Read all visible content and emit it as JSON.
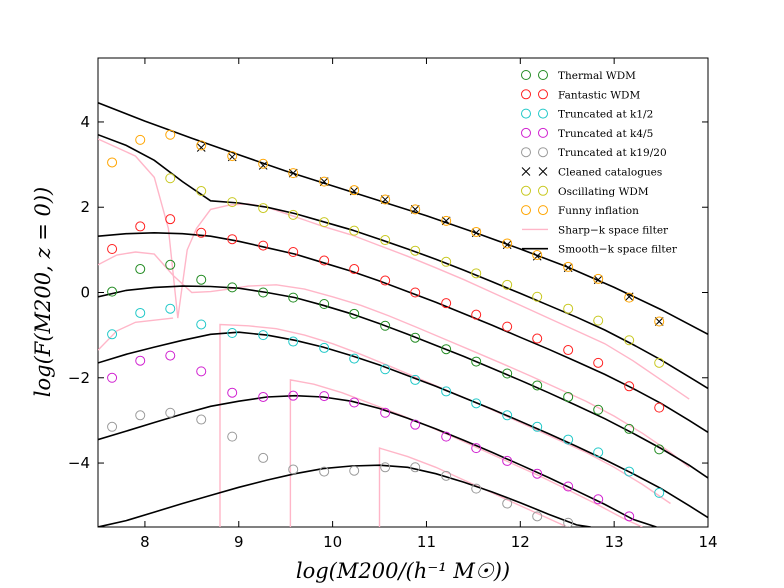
{
  "chart_data": {
    "type": "scatter",
    "title": "",
    "xlabel": "log(M200/(h⁻¹ M☉))",
    "ylabel": "log(F(M200, z = 0))",
    "xlim": [
      7.5,
      14.0
    ],
    "ylim": [
      -5.5,
      5.5
    ],
    "xticks": [
      8,
      9,
      10,
      11,
      12,
      13,
      14
    ],
    "yticks": [
      -4,
      -2,
      0,
      2,
      4
    ],
    "xtick_labels": [
      "8",
      "9",
      "10",
      "11",
      "12",
      "13",
      "14"
    ],
    "ytick_labels": [
      "−4",
      "−2",
      "0",
      "2",
      "4"
    ],
    "legend_position": "top-right",
    "series": [
      {
        "name": "Thermal WDM",
        "marker": "circle",
        "color": "#228B22",
        "x": [
          7.65,
          7.95,
          8.27,
          8.6,
          8.93,
          9.26,
          9.58,
          9.91,
          10.23,
          10.56,
          10.88,
          11.21,
          11.53,
          11.86,
          12.18,
          12.51,
          12.83,
          13.16,
          13.48
        ],
        "y": [
          0.02,
          0.55,
          0.65,
          0.3,
          0.12,
          0.0,
          -0.12,
          -0.27,
          -0.5,
          -0.78,
          -1.06,
          -1.33,
          -1.62,
          -1.9,
          -2.18,
          -2.45,
          -2.75,
          -3.2,
          -3.68
        ]
      },
      {
        "name": "Fantastic WDM",
        "marker": "circle",
        "color": "#FF2020",
        "x": [
          7.65,
          7.95,
          8.27,
          8.6,
          8.93,
          9.26,
          9.58,
          9.91,
          10.23,
          10.56,
          10.88,
          11.21,
          11.53,
          11.86,
          12.18,
          12.51,
          12.83,
          13.16,
          13.48
        ],
        "y": [
          1.02,
          1.55,
          1.72,
          1.4,
          1.25,
          1.1,
          0.95,
          0.75,
          0.55,
          0.28,
          0.0,
          -0.25,
          -0.52,
          -0.8,
          -1.08,
          -1.35,
          -1.65,
          -2.2,
          -2.7
        ]
      },
      {
        "name": "Truncated at k1/2",
        "marker": "circle",
        "color": "#20C8C8",
        "x": [
          7.65,
          7.95,
          8.27,
          8.6,
          8.93,
          9.26,
          9.58,
          9.91,
          10.23,
          10.56,
          10.88,
          11.21,
          11.53,
          11.86,
          12.18,
          12.51,
          12.83,
          13.16,
          13.48
        ],
        "y": [
          -0.98,
          -0.48,
          -0.38,
          -0.75,
          -0.95,
          -1.0,
          -1.15,
          -1.3,
          -1.55,
          -1.8,
          -2.05,
          -2.32,
          -2.6,
          -2.88,
          -3.15,
          -3.45,
          -3.75,
          -4.2,
          -4.7
        ]
      },
      {
        "name": "Truncated at k4/5",
        "marker": "circle",
        "color": "#D020D0",
        "x": [
          7.65,
          7.95,
          8.27,
          8.6,
          8.93,
          9.26,
          9.58,
          9.91,
          10.23,
          10.56,
          10.88,
          11.21,
          11.53,
          11.86,
          12.18,
          12.51,
          12.83,
          13.16
        ],
        "y": [
          -2.0,
          -1.6,
          -1.48,
          -1.85,
          -2.35,
          -2.45,
          -2.42,
          -2.43,
          -2.58,
          -2.82,
          -3.1,
          -3.38,
          -3.65,
          -3.95,
          -4.25,
          -4.55,
          -4.85,
          -5.25
        ]
      },
      {
        "name": "Truncated at k19/20",
        "marker": "circle",
        "color": "#9A9A9A",
        "x": [
          7.65,
          7.95,
          8.27,
          8.6,
          8.93,
          9.26,
          9.58,
          9.91,
          10.23,
          10.56,
          10.88,
          11.21,
          11.53,
          11.86,
          12.18,
          12.51
        ],
        "y": [
          -3.15,
          -2.88,
          -2.82,
          -2.98,
          -3.38,
          -3.88,
          -4.15,
          -4.2,
          -4.18,
          -4.1,
          -4.1,
          -4.3,
          -4.6,
          -4.95,
          -5.25,
          -5.4
        ]
      },
      {
        "name": "Cleaned catalogues",
        "marker": "x",
        "color": "#000000",
        "x": [
          8.6,
          8.93,
          9.26,
          9.58,
          9.91,
          10.23,
          10.56,
          10.88,
          11.21,
          11.53,
          11.86,
          12.18,
          12.51,
          12.83,
          13.16,
          13.48
        ],
        "y": [
          3.4,
          3.18,
          2.98,
          2.8,
          2.6,
          2.38,
          2.18,
          1.95,
          1.68,
          1.4,
          1.12,
          0.85,
          0.58,
          0.3,
          -0.1,
          -0.68
        ]
      },
      {
        "name": "Oscillating WDM",
        "marker": "circle",
        "color": "#C8C820",
        "x": [
          8.27,
          8.6,
          8.93,
          9.26,
          9.58,
          9.91,
          10.23,
          10.56,
          10.88,
          11.21,
          11.53,
          11.86,
          12.18,
          12.51,
          12.83,
          13.16,
          13.48
        ],
        "y": [
          2.68,
          2.38,
          2.12,
          1.98,
          1.82,
          1.65,
          1.45,
          1.23,
          0.98,
          0.72,
          0.45,
          0.18,
          -0.1,
          -0.38,
          -0.66,
          -1.12,
          -1.65
        ]
      },
      {
        "name": "Funny inflation",
        "marker": "circle",
        "color": "#FFA500",
        "x": [
          7.65,
          7.95,
          8.27,
          8.6,
          8.93,
          9.26,
          9.58,
          9.91,
          10.23,
          10.56,
          10.88,
          11.21,
          11.53,
          11.86,
          12.18,
          12.51,
          12.83,
          13.16,
          13.48
        ],
        "y": [
          3.05,
          3.58,
          3.7,
          3.45,
          3.2,
          3.02,
          2.8,
          2.6,
          2.4,
          2.18,
          1.95,
          1.68,
          1.42,
          1.15,
          0.88,
          0.6,
          0.32,
          -0.12,
          -0.68
        ]
      },
      {
        "name": "Sharp−k space filter",
        "marker": "line",
        "color": "#FFB6C8",
        "segments": [
          {
            "x": [
              7.5,
              7.7,
              7.9,
              8.1,
              8.25,
              8.35,
              8.45,
              8.55,
              8.7,
              8.9,
              9.1,
              9.3,
              9.5,
              9.7,
              9.9,
              10.2,
              10.5,
              10.8,
              11.1,
              11.4,
              11.7,
              12.0,
              12.3,
              12.6,
              12.9,
              13.2,
              13.5,
              13.8
            ],
            "y": [
              3.6,
              3.4,
              3.2,
              2.7,
              1.5,
              -0.6,
              1.0,
              1.5,
              1.95,
              2.05,
              2.08,
              2.0,
              1.85,
              1.7,
              1.55,
              1.35,
              1.1,
              0.85,
              0.58,
              0.3,
              0.0,
              -0.3,
              -0.6,
              -0.9,
              -1.2,
              -1.6,
              -2.05,
              -2.5
            ]
          },
          {
            "x": [
              7.5,
              7.7,
              7.9,
              8.1,
              8.3,
              8.5,
              8.7,
              8.9,
              9.1,
              9.4,
              9.7,
              10.0,
              10.3,
              10.6,
              10.9,
              11.2,
              11.5,
              11.8,
              12.1,
              12.4,
              12.7,
              13.0,
              13.3,
              13.6,
              13.8
            ],
            "y": [
              0.65,
              0.88,
              0.95,
              0.9,
              0.4,
              0.0,
              0.02,
              0.08,
              0.15,
              0.18,
              0.08,
              -0.1,
              -0.3,
              -0.55,
              -0.82,
              -1.1,
              -1.38,
              -1.66,
              -1.95,
              -2.25,
              -2.55,
              -2.9,
              -3.3,
              -3.75,
              -4.1
            ]
          },
          {
            "x": [
              7.5,
              7.7,
              7.9,
              8.1,
              8.3
            ],
            "y": [
              -1.35,
              -0.9,
              -0.7,
              -0.65,
              -0.6
            ]
          },
          {
            "x": [
              8.8,
              8.8,
              9.1,
              9.4,
              9.7,
              10.0,
              10.3,
              10.6,
              10.9,
              11.2,
              11.5,
              11.8,
              12.1,
              12.4,
              12.7,
              13.0,
              13.3,
              13.6
            ],
            "y": [
              -5.5,
              -0.75,
              -0.78,
              -0.85,
              -1.0,
              -1.2,
              -1.45,
              -1.72,
              -2.0,
              -2.28,
              -2.56,
              -2.85,
              -3.15,
              -3.45,
              -3.75,
              -4.1,
              -4.5,
              -4.95
            ]
          },
          {
            "x": [
              9.55,
              9.55,
              9.8,
              10.1,
              10.4,
              10.7,
              11.0,
              11.3,
              11.6,
              11.9,
              12.2,
              12.5,
              12.8,
              13.1,
              13.3
            ],
            "y": [
              -5.5,
              -2.05,
              -2.15,
              -2.35,
              -2.6,
              -2.85,
              -3.12,
              -3.4,
              -3.7,
              -4.0,
              -4.3,
              -4.62,
              -4.95,
              -5.3,
              -5.5
            ]
          },
          {
            "x": [
              10.5,
              10.5,
              10.8,
              11.1,
              11.4,
              11.7,
              12.0,
              12.3,
              12.5
            ],
            "y": [
              -5.5,
              -3.65,
              -3.85,
              -4.1,
              -4.4,
              -4.7,
              -5.0,
              -5.3,
              -5.5
            ]
          }
        ]
      },
      {
        "name": "Smooth−k space filter",
        "marker": "line",
        "color": "#000000",
        "segments": [
          {
            "x": [
              7.5,
              8.0,
              8.5,
              9.0,
              9.5,
              10.0,
              10.5,
              11.0,
              11.5,
              12.0,
              12.5,
              13.0,
              13.5,
              14.0
            ],
            "y": [
              4.45,
              4.02,
              3.62,
              3.23,
              2.85,
              2.5,
              2.15,
              1.8,
              1.42,
              1.02,
              0.6,
              0.12,
              -0.4,
              -0.98
            ]
          },
          {
            "x": [
              7.5,
              7.8,
              8.1,
              8.4,
              8.7,
              9.0,
              9.3,
              9.6,
              9.9,
              10.2,
              10.5,
              10.8,
              11.1,
              11.4,
              11.7,
              12.0,
              12.3,
              12.6,
              12.9,
              13.2,
              13.5,
              13.8,
              14.0
            ],
            "y": [
              3.7,
              3.45,
              3.1,
              2.6,
              2.15,
              2.1,
              2.0,
              1.85,
              1.66,
              1.47,
              1.25,
              1.02,
              0.78,
              0.52,
              0.25,
              -0.02,
              -0.3,
              -0.58,
              -0.88,
              -1.22,
              -1.58,
              -1.98,
              -2.25
            ]
          },
          {
            "x": [
              7.5,
              7.8,
              8.1,
              8.4,
              8.7,
              9.0,
              9.3,
              9.6,
              9.9,
              10.2,
              10.5,
              10.8,
              11.1,
              11.4,
              11.7,
              12.0,
              12.3,
              12.6,
              12.9,
              13.2,
              13.5,
              13.8,
              14.0
            ],
            "y": [
              1.32,
              1.38,
              1.4,
              1.38,
              1.32,
              1.2,
              1.05,
              0.9,
              0.7,
              0.5,
              0.27,
              0.02,
              -0.23,
              -0.5,
              -0.77,
              -1.05,
              -1.33,
              -1.62,
              -1.92,
              -2.25,
              -2.6,
              -3.0,
              -3.28
            ]
          },
          {
            "x": [
              7.5,
              7.8,
              8.1,
              8.4,
              8.7,
              9.0,
              9.3,
              9.6,
              9.9,
              10.2,
              10.5,
              10.8,
              11.1,
              11.4,
              11.7,
              12.0,
              12.3,
              12.6,
              12.9,
              13.2,
              13.5,
              13.8,
              14.0
            ],
            "y": [
              -0.1,
              0.05,
              0.12,
              0.15,
              0.14,
              0.1,
              0.0,
              -0.12,
              -0.3,
              -0.5,
              -0.73,
              -0.98,
              -1.24,
              -1.5,
              -1.78,
              -2.06,
              -2.35,
              -2.65,
              -2.96,
              -3.3,
              -3.66,
              -4.05,
              -4.35
            ]
          },
          {
            "x": [
              7.5,
              7.8,
              8.1,
              8.4,
              8.7,
              9.0,
              9.3,
              9.6,
              9.9,
              10.2,
              10.5,
              10.8,
              11.1,
              11.4,
              11.7,
              12.0,
              12.3,
              12.6,
              12.9,
              13.2,
              13.5,
              13.8,
              14.0
            ],
            "y": [
              -1.65,
              -1.45,
              -1.28,
              -1.12,
              -0.98,
              -0.93,
              -1.0,
              -1.12,
              -1.28,
              -1.48,
              -1.7,
              -1.95,
              -2.2,
              -2.47,
              -2.74,
              -3.02,
              -3.31,
              -3.61,
              -3.92,
              -4.25,
              -4.6,
              -5.0,
              -5.28
            ]
          },
          {
            "x": [
              7.5,
              7.8,
              8.1,
              8.4,
              8.7,
              9.0,
              9.3,
              9.6,
              9.9,
              10.2,
              10.5,
              10.8,
              11.1,
              11.4,
              11.7,
              12.0,
              12.3,
              12.6,
              12.9,
              13.2,
              13.45
            ],
            "y": [
              -3.45,
              -3.25,
              -3.05,
              -2.85,
              -2.67,
              -2.55,
              -2.45,
              -2.42,
              -2.45,
              -2.55,
              -2.72,
              -2.95,
              -3.2,
              -3.47,
              -3.75,
              -4.04,
              -4.34,
              -4.65,
              -4.97,
              -5.32,
              -5.5
            ]
          },
          {
            "x": [
              7.5,
              7.8,
              8.1,
              8.4,
              8.7,
              9.0,
              9.3,
              9.6,
              9.9,
              10.2,
              10.5,
              10.8,
              11.1,
              11.4,
              11.7,
              12.0,
              12.3,
              12.6,
              12.75
            ],
            "y": [
              -5.5,
              -5.35,
              -5.15,
              -4.95,
              -4.76,
              -4.57,
              -4.4,
              -4.25,
              -4.13,
              -4.07,
              -4.05,
              -4.1,
              -4.25,
              -4.45,
              -4.68,
              -4.93,
              -5.2,
              -5.45,
              -5.5
            ]
          }
        ]
      }
    ]
  }
}
